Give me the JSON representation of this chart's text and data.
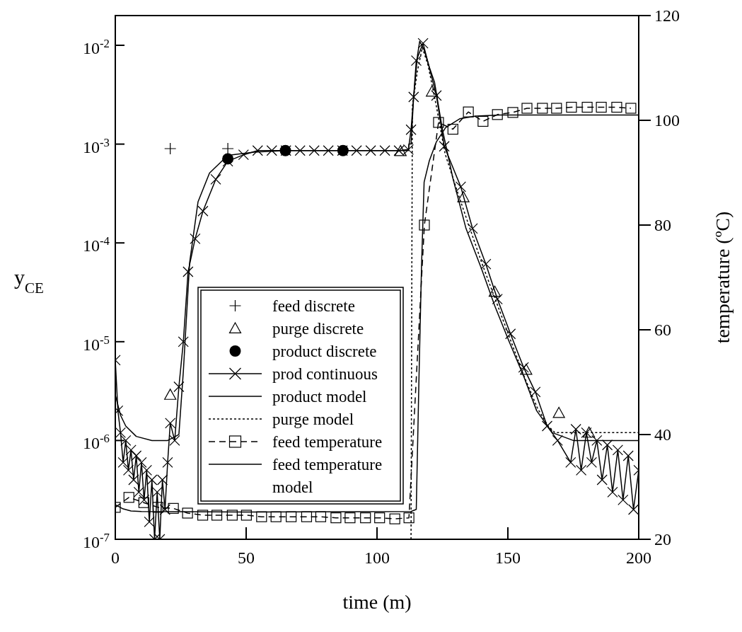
{
  "chart_data": {
    "type": "line",
    "xlabel": "time (m)",
    "ylabel": "y$_{CE}$",
    "y2label": "temperature (ºC)",
    "xlim": [
      0,
      200
    ],
    "xticks": [
      0,
      50,
      100,
      150,
      200
    ],
    "ylim": [
      1e-07,
      0.02
    ],
    "log": "y",
    "y2lim": [
      20,
      120
    ],
    "y2ticks": [
      20,
      40,
      60,
      80,
      100,
      120
    ],
    "yticks": [
      {
        "value": 1e-07,
        "label": "10$^{-7}$"
      },
      {
        "value": 1e-06,
        "label": "10$^{-6}$"
      },
      {
        "value": 1e-05,
        "label": "10$^{-5}$"
      },
      {
        "value": 0.0001,
        "label": "10$^{-4}$"
      },
      {
        "value": 0.001,
        "label": "10$^{-3}$"
      },
      {
        "value": 0.01,
        "label": "10$^{-2}$"
      }
    ],
    "legend": "bottom left",
    "grid": false,
    "series": [
      {
        "name": "feed discrete",
        "type": "scatter",
        "marker": "cross",
        "color": "#000000",
        "x": [
          21,
          43
        ],
        "values": [
          0.0009,
          0.0009
        ]
      },
      {
        "name": "purge discrete",
        "type": "scatter",
        "marker": "triangle",
        "color": "#000000",
        "x": [
          21,
          109,
          121,
          133,
          145,
          157,
          169.5,
          181
        ],
        "values": [
          2.9e-06,
          0.00085,
          0.0034,
          0.00029,
          3.2e-05,
          5.2e-06,
          1.9e-06,
          1.2e-06
        ]
      },
      {
        "name": "product discrete",
        "type": "scatter",
        "marker": "circle",
        "color": "#000000",
        "x": [
          43,
          65,
          87
        ],
        "values": [
          0.00071,
          0.00086,
          0.00086
        ]
      },
      {
        "name": "prod continuous",
        "type": "line",
        "marker": "cross",
        "line_style": "solid",
        "color": "#000000",
        "x": [
          0,
          1,
          2,
          3,
          4,
          5,
          6,
          7,
          8,
          9,
          10,
          11,
          12,
          13,
          14,
          15,
          16,
          17,
          18,
          19,
          20,
          21,
          22.7,
          24.3,
          26,
          27.8,
          30.5,
          33.5,
          38.4,
          43,
          49,
          54.4,
          59.8,
          65.2,
          70.6,
          76,
          81.4,
          86.8,
          92.2,
          97.6,
          103,
          108.4,
          112,
          113,
          114,
          115,
          117.6,
          122.7,
          125.7,
          132,
          136.5,
          141.6,
          146,
          151,
          156,
          160.5,
          165,
          169,
          174,
          176,
          178,
          180,
          182,
          184,
          186,
          188,
          190,
          192,
          194,
          196,
          198,
          200
        ],
        "values": [
          6.5e-06,
          2e-06,
          1.2e-06,
          6e-07,
          1e-06,
          5e-07,
          8e-07,
          4e-07,
          7e-07,
          3e-07,
          6e-07,
          2.5e-07,
          5e-07,
          1.5e-07,
          4e-07,
          1e-07,
          3e-07,
          1e-07,
          4e-07,
          2e-07,
          6e-07,
          1.5e-06,
          1e-06,
          3.5e-06,
          1e-05,
          5.1e-05,
          0.00011,
          0.00021,
          0.00044,
          0.00067,
          0.00078,
          0.00086,
          0.00086,
          0.00086,
          0.00086,
          0.00086,
          0.00086,
          0.00086,
          0.00086,
          0.00086,
          0.00086,
          0.00086,
          0.00088,
          0.0014,
          0.003,
          0.007,
          0.0105,
          0.0031,
          0.00095,
          0.00037,
          0.00014,
          6.1e-05,
          2.7e-05,
          1.2e-05,
          5.5e-06,
          3.1e-06,
          1.4e-06,
          1e-06,
          6e-07,
          1.3e-06,
          5e-07,
          1.2e-06,
          6e-07,
          1e-06,
          4e-07,
          9e-07,
          3e-07,
          8e-07,
          2.5e-07,
          7e-07,
          2e-07,
          5e-07
        ]
      },
      {
        "name": "product model",
        "type": "line",
        "marker": "none",
        "line_style": "solid",
        "color": "#000000",
        "x": [
          0,
          2,
          4,
          8,
          14,
          20,
          23,
          24.3,
          26,
          28.4,
          31.6,
          36,
          43,
          53,
          65,
          112,
          112.2,
          113,
          114,
          115.5,
          116.3,
          118,
          120,
          122,
          125,
          129,
          134,
          140,
          145,
          150.5,
          156,
          161,
          167,
          175,
          200
        ],
        "values": [
          2.9e-06,
          1.8e-06,
          1.4e-06,
          1.1e-06,
          1e-06,
          1e-06,
          1.1e-06,
          1.15e-06,
          5e-06,
          6.3e-05,
          0.00026,
          0.00051,
          0.00077,
          0.00083,
          0.00086,
          0.00086,
          0.001,
          0.001,
          0.003,
          0.008,
          0.011,
          0.009,
          0.006,
          0.0042,
          0.0014,
          0.00045,
          0.00014,
          5.4e-05,
          2.3e-05,
          1e-05,
          4.5e-06,
          2e-06,
          1.2e-06,
          1e-06,
          1e-06
        ]
      },
      {
        "name": "purge model",
        "type": "line",
        "marker": "none",
        "line_style": "dotted",
        "color": "#000000",
        "x": [
          113,
          113.5,
          115.4,
          117.3,
          119.5,
          122.7,
          126,
          131.6,
          140,
          148,
          156,
          161.4,
          165.4,
          168,
          172,
          200
        ],
        "values": [
          1e-07,
          0.0024,
          0.0054,
          0.0095,
          0.0063,
          0.0024,
          0.0008,
          0.00028,
          6.3e-05,
          1.7e-05,
          4.6e-06,
          2.1e-06,
          1.4e-06,
          1.2e-06,
          1.2e-06,
          1.2e-06
        ]
      },
      {
        "name": "feed temperature",
        "type": "line",
        "marker": "square",
        "line_style": "dashed",
        "axis": "y2",
        "color": "#000000",
        "x": [
          0,
          5.2,
          10.9,
          16.3,
          22.2,
          27.6,
          33.4,
          38.8,
          44.7,
          50.1,
          55.9,
          61.4,
          67.2,
          73.1,
          78.5,
          84.3,
          89.7,
          95.6,
          101,
          106.8,
          112.2,
          118.1,
          123.5,
          129,
          134.9,
          140.5,
          146,
          151.9,
          157.3,
          163.2,
          168.6,
          174.3,
          180.3,
          185.7,
          191.6,
          197
        ],
        "values": [
          26.1,
          28,
          27,
          26.1,
          25.9,
          25,
          24.6,
          24.6,
          24.6,
          24.6,
          24.3,
          24.3,
          24.3,
          24.3,
          24.3,
          24.1,
          24.1,
          24.1,
          24.1,
          23.9,
          24.1,
          80,
          99.6,
          98.3,
          101.6,
          99.8,
          101.1,
          101.5,
          102.3,
          102.3,
          102.3,
          102.5,
          102.5,
          102.5,
          102.5,
          102.3
        ]
      },
      {
        "name": "feed temperature model",
        "type": "line",
        "marker": "none",
        "line_style": "solid",
        "axis": "y2",
        "color": "#000000",
        "x": [
          0,
          3,
          6,
          10,
          50,
          113,
          115,
          116,
          117,
          118,
          120,
          122.7,
          126.2,
          131.6,
          137.8,
          147,
          200
        ],
        "values": [
          26.6,
          25.8,
          25.4,
          25.3,
          25.2,
          25.3,
          25.7,
          50,
          72,
          88.2,
          92.3,
          95.9,
          98.6,
          100.3,
          100.8,
          101,
          101
        ]
      }
    ]
  }
}
